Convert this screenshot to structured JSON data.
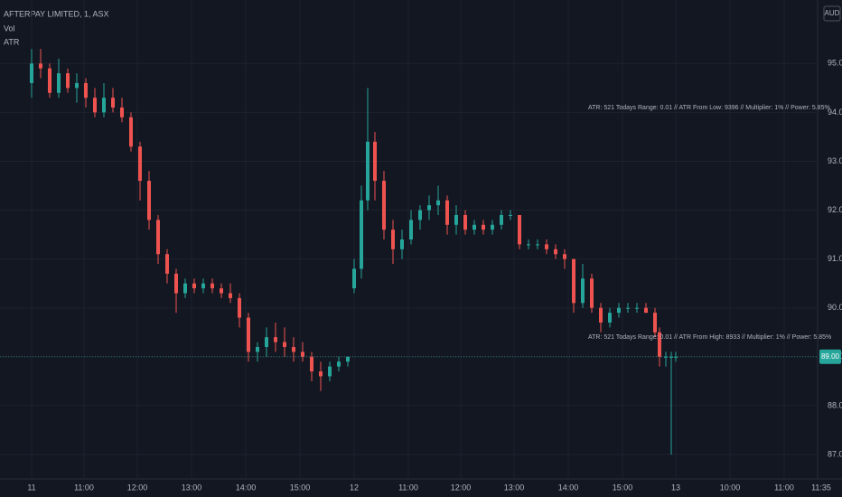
{
  "chart_data": {
    "type": "candlestick",
    "title": "AFTERPAY LIMITED, 1, ASX",
    "indicators": [
      "Vol",
      "ATR"
    ],
    "currency": "AUD",
    "up_color": "#26a69a",
    "down_color": "#ef5350",
    "grid": true,
    "xlim": [
      -35,
      870
    ],
    "ylim": [
      86.5,
      96.3
    ],
    "yticks": [
      {
        "value": 87,
        "label": "87.00"
      },
      {
        "value": 88,
        "label": "88.00"
      },
      {
        "value": 89,
        "label": "89.00"
      },
      {
        "value": 90,
        "label": "90.00"
      },
      {
        "value": 91,
        "label": "91.00"
      },
      {
        "value": 92,
        "label": "92.00"
      },
      {
        "value": 93,
        "label": "93.00"
      },
      {
        "value": 94,
        "label": "94.00"
      },
      {
        "value": 95,
        "label": "95.00"
      }
    ],
    "xticks": [
      {
        "value": 0,
        "label": "11"
      },
      {
        "value": 58,
        "label": "11:00"
      },
      {
        "value": 117,
        "label": "12:00"
      },
      {
        "value": 177,
        "label": "13:00"
      },
      {
        "value": 237,
        "label": "14:00"
      },
      {
        "value": 297,
        "label": "15:00"
      },
      {
        "value": 357,
        "label": "12"
      },
      {
        "value": 417,
        "label": "11:00"
      },
      {
        "value": 475,
        "label": "12:00"
      },
      {
        "value": 534,
        "label": "13:00"
      },
      {
        "value": 594,
        "label": "14:00"
      },
      {
        "value": 654,
        "label": "15:00"
      },
      {
        "value": 713,
        "label": "13"
      },
      {
        "value": 773,
        "label": "10:00"
      },
      {
        "value": 833,
        "label": "11:00"
      },
      {
        "value": 874,
        "label": "11:35"
      }
    ],
    "last_price": {
      "value": 89,
      "label": "89.00"
    },
    "annotations": [
      {
        "text": "ATR: 521 Todays Range: 0.01 // ATR From Low: 9396 // Multiplier: 1% // Power: 5.85%",
        "price": 94.1
      },
      {
        "text": "ATR: 521 Todays Range: 0.01 // ATR From High: 8933 // Multiplier: 1% // Power: 5.85%",
        "price": 89.4
      }
    ],
    "candles": [
      [
        0,
        94.6,
        95.3,
        94.3,
        95.0
      ],
      [
        10,
        95.0,
        95.3,
        94.7,
        94.9
      ],
      [
        20,
        94.9,
        95.0,
        94.3,
        94.4
      ],
      [
        30,
        94.4,
        95.1,
        94.3,
        94.8
      ],
      [
        40,
        94.8,
        94.9,
        94.4,
        94.5
      ],
      [
        50,
        94.5,
        94.8,
        94.2,
        94.6
      ],
      [
        60,
        94.6,
        94.7,
        94.1,
        94.3
      ],
      [
        70,
        94.3,
        94.5,
        93.9,
        94.0
      ],
      [
        80,
        94.0,
        94.6,
        93.9,
        94.3
      ],
      [
        90,
        94.3,
        94.5,
        94.0,
        94.1
      ],
      [
        100,
        94.1,
        94.3,
        93.8,
        93.9
      ],
      [
        110,
        93.9,
        94.0,
        93.2,
        93.3
      ],
      [
        120,
        93.3,
        93.4,
        92.2,
        92.6
      ],
      [
        130,
        92.6,
        92.8,
        91.6,
        91.8
      ],
      [
        140,
        91.8,
        91.9,
        90.9,
        91.1
      ],
      [
        150,
        91.1,
        91.2,
        90.5,
        90.7
      ],
      [
        160,
        90.7,
        90.8,
        89.9,
        90.3
      ],
      [
        170,
        90.3,
        90.6,
        90.2,
        90.5
      ],
      [
        180,
        90.5,
        90.6,
        90.3,
        90.4
      ],
      [
        190,
        90.4,
        90.6,
        90.3,
        90.5
      ],
      [
        200,
        90.5,
        90.6,
        90.3,
        90.4
      ],
      [
        210,
        90.4,
        90.5,
        90.2,
        90.3
      ],
      [
        220,
        90.3,
        90.5,
        90.1,
        90.2
      ],
      [
        230,
        90.2,
        90.3,
        89.6,
        89.8
      ],
      [
        240,
        89.8,
        89.9,
        88.9,
        89.1
      ],
      [
        250,
        89.1,
        89.3,
        88.9,
        89.2
      ],
      [
        260,
        89.2,
        89.6,
        89.0,
        89.4
      ],
      [
        270,
        89.4,
        89.7,
        89.1,
        89.3
      ],
      [
        280,
        89.3,
        89.6,
        89.0,
        89.2
      ],
      [
        290,
        89.2,
        89.4,
        88.9,
        89.1
      ],
      [
        300,
        89.1,
        89.3,
        88.9,
        89.0
      ],
      [
        310,
        89.0,
        89.1,
        88.5,
        88.7
      ],
      [
        320,
        88.7,
        88.9,
        88.3,
        88.6
      ],
      [
        330,
        88.6,
        88.9,
        88.5,
        88.8
      ],
      [
        340,
        88.8,
        89.0,
        88.7,
        88.9
      ],
      [
        350,
        88.9,
        89.0,
        88.8,
        89.0
      ],
      [
        357,
        90.4,
        91.0,
        90.3,
        90.8
      ],
      [
        365,
        90.8,
        92.5,
        90.6,
        92.2
      ],
      [
        372,
        92.2,
        94.5,
        92.0,
        93.4
      ],
      [
        380,
        93.4,
        93.6,
        92.2,
        92.6
      ],
      [
        390,
        92.6,
        92.8,
        91.4,
        91.6
      ],
      [
        400,
        91.6,
        91.8,
        90.9,
        91.2
      ],
      [
        410,
        91.2,
        91.6,
        91.0,
        91.4
      ],
      [
        420,
        91.4,
        92.0,
        91.3,
        91.8
      ],
      [
        430,
        91.8,
        92.1,
        91.6,
        92.0
      ],
      [
        440,
        92.0,
        92.3,
        91.8,
        92.1
      ],
      [
        450,
        92.1,
        92.5,
        91.9,
        92.2
      ],
      [
        460,
        92.2,
        92.3,
        91.5,
        91.7
      ],
      [
        470,
        91.7,
        92.1,
        91.5,
        91.9
      ],
      [
        480,
        91.9,
        92.0,
        91.5,
        91.6
      ],
      [
        490,
        91.6,
        91.8,
        91.5,
        91.7
      ],
      [
        500,
        91.7,
        91.8,
        91.5,
        91.6
      ],
      [
        510,
        91.6,
        91.8,
        91.5,
        91.7
      ],
      [
        520,
        91.7,
        92.0,
        91.6,
        91.9
      ],
      [
        530,
        91.9,
        92.0,
        91.8,
        91.9
      ],
      [
        540,
        91.9,
        91.9,
        91.2,
        91.3
      ],
      [
        550,
        91.3,
        91.4,
        91.2,
        91.3
      ],
      [
        560,
        91.3,
        91.4,
        91.2,
        91.3
      ],
      [
        570,
        91.3,
        91.4,
        91.1,
        91.2
      ],
      [
        580,
        91.2,
        91.3,
        91.0,
        91.1
      ],
      [
        590,
        91.1,
        91.2,
        90.8,
        91.0
      ],
      [
        600,
        91.0,
        91.0,
        89.9,
        90.1
      ],
      [
        610,
        90.1,
        90.9,
        90.0,
        90.6
      ],
      [
        620,
        90.6,
        90.7,
        89.9,
        90.0
      ],
      [
        630,
        90.0,
        90.1,
        89.5,
        89.7
      ],
      [
        640,
        89.7,
        90.0,
        89.6,
        89.9
      ],
      [
        650,
        89.9,
        90.1,
        89.8,
        90.0
      ],
      [
        660,
        90.0,
        90.1,
        89.9,
        90.0
      ],
      [
        670,
        90.0,
        90.1,
        89.9,
        90.0
      ],
      [
        680,
        90.0,
        90.1,
        89.9,
        89.9
      ],
      [
        690,
        89.9,
        90.0,
        89.4,
        89.5
      ],
      [
        695,
        89.5,
        89.6,
        88.8,
        89.0
      ],
      [
        702,
        89.0,
        89.1,
        88.8,
        89.0
      ],
      [
        708,
        89.0,
        89.1,
        87.0,
        89.0
      ],
      [
        713,
        89.0,
        89.1,
        88.9,
        89.0
      ]
    ]
  }
}
